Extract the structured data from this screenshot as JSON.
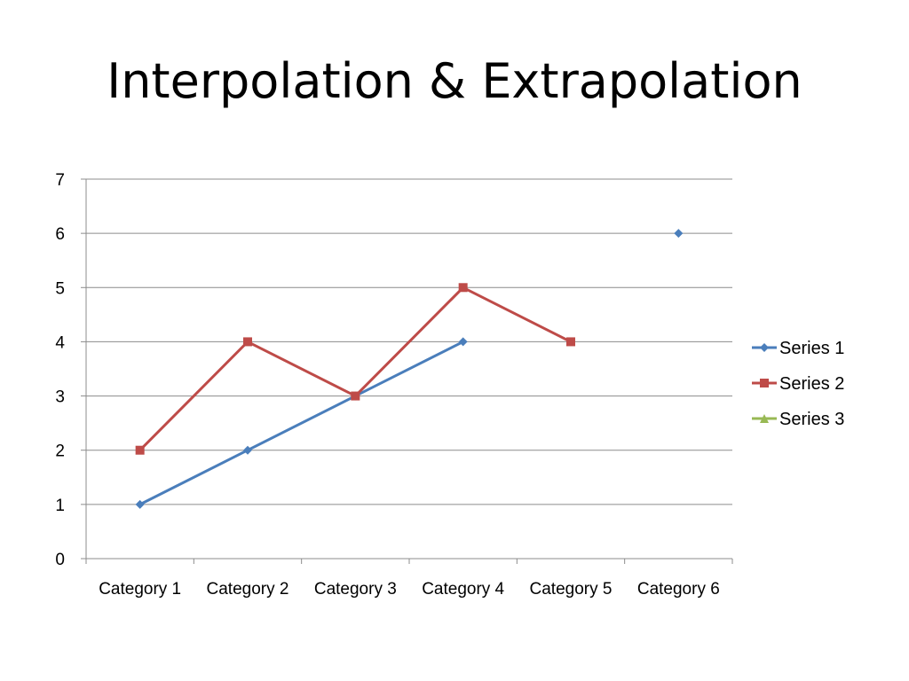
{
  "slide": {
    "title": "Interpolation & Extrapolation"
  },
  "chart_data": {
    "type": "line",
    "title": "",
    "xlabel": "",
    "ylabel": "",
    "categories": [
      "Category 1",
      "Category 2",
      "Category 3",
      "Category 4",
      "Category 5",
      "Category 6"
    ],
    "ylim": [
      0,
      7
    ],
    "yticks": [
      0,
      1,
      2,
      3,
      4,
      5,
      6,
      7
    ],
    "grid": true,
    "legend": "right",
    "series": [
      {
        "name": "Series 1",
        "color": "#4a7ebb",
        "marker": "diamond",
        "values": [
          1,
          2,
          3,
          4,
          null,
          6
        ]
      },
      {
        "name": "Series 2",
        "color": "#be4b48",
        "marker": "square",
        "values": [
          2,
          4,
          3,
          5,
          4,
          null
        ]
      },
      {
        "name": "Series 3",
        "color": "#98b954",
        "marker": "triangle",
        "values": [
          null,
          null,
          null,
          null,
          null,
          null
        ]
      }
    ]
  }
}
